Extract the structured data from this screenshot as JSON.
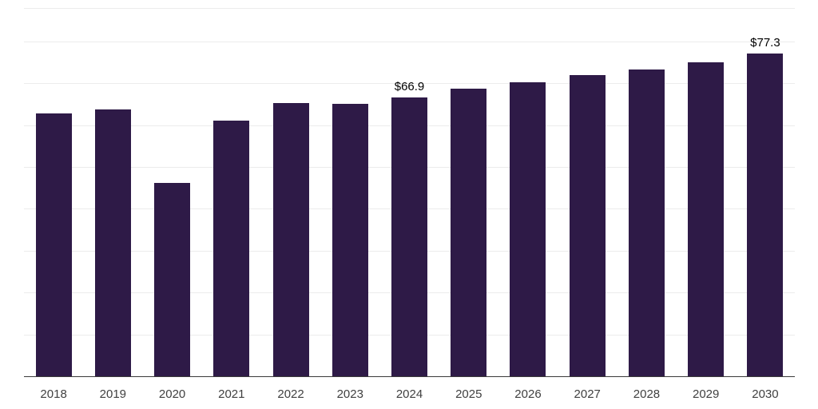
{
  "chart_data": {
    "type": "bar",
    "title": "",
    "xlabel": "",
    "ylabel": "",
    "categories": [
      "2018",
      "2019",
      "2020",
      "2021",
      "2022",
      "2023",
      "2024",
      "2025",
      "2026",
      "2027",
      "2028",
      "2029",
      "2030"
    ],
    "values": [
      63.0,
      63.9,
      46.4,
      61.3,
      65.5,
      65.2,
      66.9,
      68.9,
      70.5,
      72.2,
      73.5,
      75.3,
      77.3
    ],
    "data_labels": {
      "2024": "$66.9",
      "2030": "$77.3"
    },
    "ylim": [
      0,
      88
    ],
    "grid_step": 10,
    "grid": "horizontal",
    "legend": "none",
    "bar_color": "#2E1A47",
    "gridline_color": "#ececec",
    "axis_line_color": "#3a3a3a"
  }
}
